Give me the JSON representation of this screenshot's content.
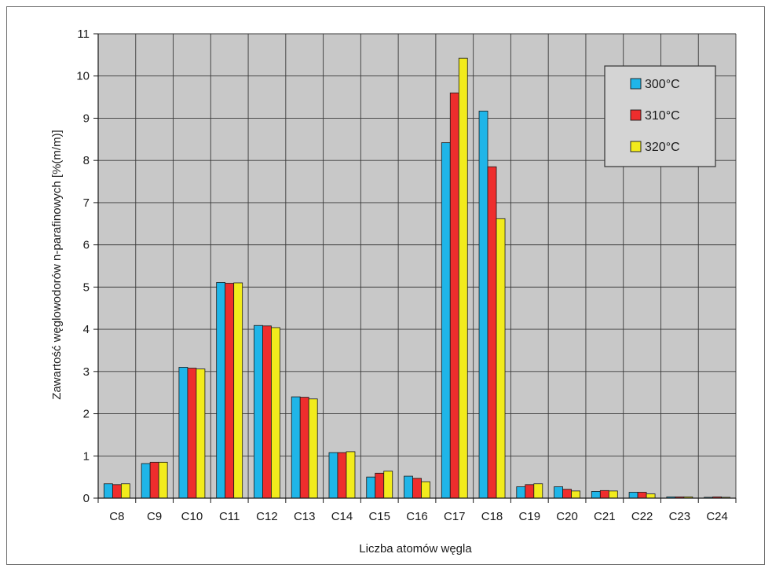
{
  "chart_data": {
    "type": "bar",
    "title": "",
    "xlabel": "Liczba atomów węgla",
    "ylabel": "Zawartość węglowodorów n-parafinowych [%(m/m)]",
    "ylim": [
      0,
      11
    ],
    "yticks": [
      "0",
      "1",
      "2",
      "3",
      "4",
      "5",
      "6",
      "7",
      "8",
      "9",
      "10",
      "11"
    ],
    "grid": true,
    "legend_position": "top-right",
    "categories": [
      "C8",
      "C9",
      "C10",
      "C11",
      "C12",
      "C13",
      "C14",
      "C15",
      "C16",
      "C17",
      "C18",
      "C19",
      "C20",
      "C21",
      "C22",
      "C23",
      "C24"
    ],
    "series": [
      {
        "name": "300°C",
        "color": "#1fb5e8",
        "values": [
          0.34,
          0.82,
          3.1,
          5.11,
          4.09,
          2.4,
          1.08,
          0.5,
          0.52,
          8.42,
          9.17,
          0.27,
          0.27,
          0.16,
          0.14,
          0.03,
          0.02
        ]
      },
      {
        "name": "310°C",
        "color": "#ee2d2d",
        "values": [
          0.32,
          0.85,
          3.08,
          5.09,
          4.08,
          2.39,
          1.08,
          0.59,
          0.47,
          9.6,
          7.85,
          0.32,
          0.21,
          0.18,
          0.14,
          0.03,
          0.03
        ]
      },
      {
        "name": "320°C",
        "color": "#f2eb1c",
        "values": [
          0.34,
          0.85,
          3.06,
          5.1,
          4.04,
          2.35,
          1.1,
          0.64,
          0.39,
          10.42,
          6.62,
          0.34,
          0.17,
          0.17,
          0.1,
          0.03,
          0.02
        ]
      }
    ]
  }
}
